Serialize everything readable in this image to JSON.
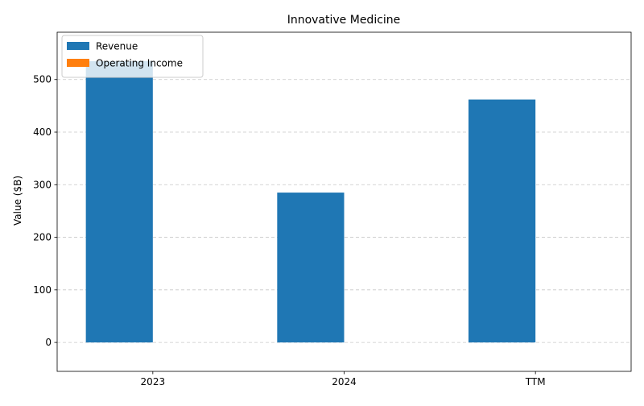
{
  "chart_data": {
    "type": "bar",
    "title": "Innovative Medicine",
    "xlabel": "",
    "ylabel": "Value ($B)",
    "categories": [
      "2023",
      "2024",
      "TTM"
    ],
    "series": [
      {
        "name": "Revenue",
        "color": "#1f77b4",
        "values": [
          535,
          285,
          462
        ]
      },
      {
        "name": "Operating Income",
        "color": "#ff7f0e",
        "values": [
          0,
          0,
          0
        ]
      }
    ],
    "ylim": [
      -55,
      590
    ],
    "yticks": [
      0,
      100,
      200,
      300,
      400,
      500
    ],
    "grid": true,
    "grid_axis": "y",
    "legend_position": "upper-left"
  }
}
